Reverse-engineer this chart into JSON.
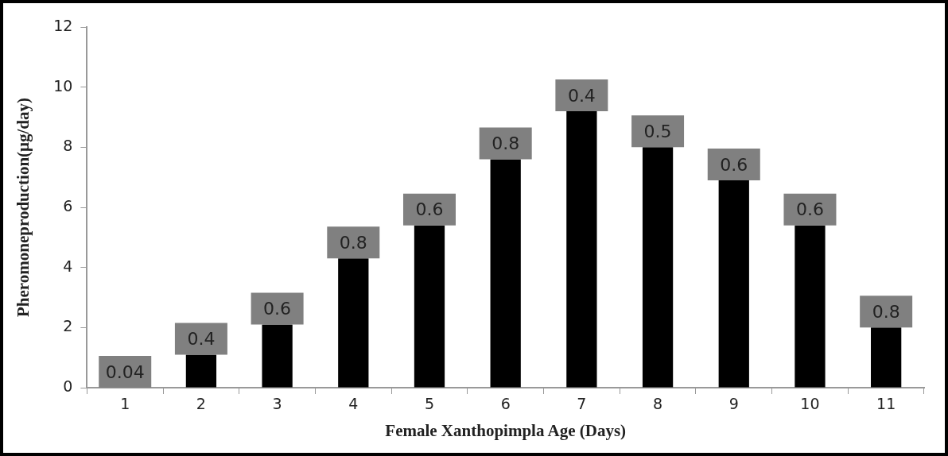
{
  "chart_data": {
    "type": "bar",
    "xlabel": "Female Xanthopimpla Age (Days)",
    "ylabel": "Pheromoneproduction(μg/day)",
    "categories": [
      "1",
      "2",
      "3",
      "4",
      "5",
      "6",
      "7",
      "8",
      "9",
      "10",
      "11"
    ],
    "values": [
      0,
      1.1,
      2.1,
      4.3,
      5.4,
      7.6,
      9.2,
      8.0,
      6.9,
      5.4,
      2.0
    ],
    "color": "#000000",
    "ylim": [
      0,
      12
    ],
    "yticks": [
      0,
      2,
      4,
      6,
      8,
      10,
      12
    ],
    "grid": false,
    "legend": false,
    "annotations": [
      {
        "text": "0.04",
        "x": "1",
        "y": 0
      },
      {
        "text": "0.4",
        "x": "2",
        "y": 1.1
      },
      {
        "text": "0.6",
        "x": "3",
        "y": 2.1
      },
      {
        "text": "0.8",
        "x": "4",
        "y": 4.3
      },
      {
        "text": "0.6",
        "x": "5",
        "y": 5.4
      },
      {
        "text": "0.8",
        "x": "6",
        "y": 7.6
      },
      {
        "text": "0.4",
        "x": "7",
        "y": 9.2
      },
      {
        "text": "0.5",
        "x": "8",
        "y": 8.0
      },
      {
        "text": "0.6",
        "x": "9",
        "y": 6.9
      },
      {
        "text": "0.6",
        "x": "10",
        "y": 5.4
      },
      {
        "text": "0.8",
        "x": "11",
        "y": 2.0
      }
    ]
  }
}
